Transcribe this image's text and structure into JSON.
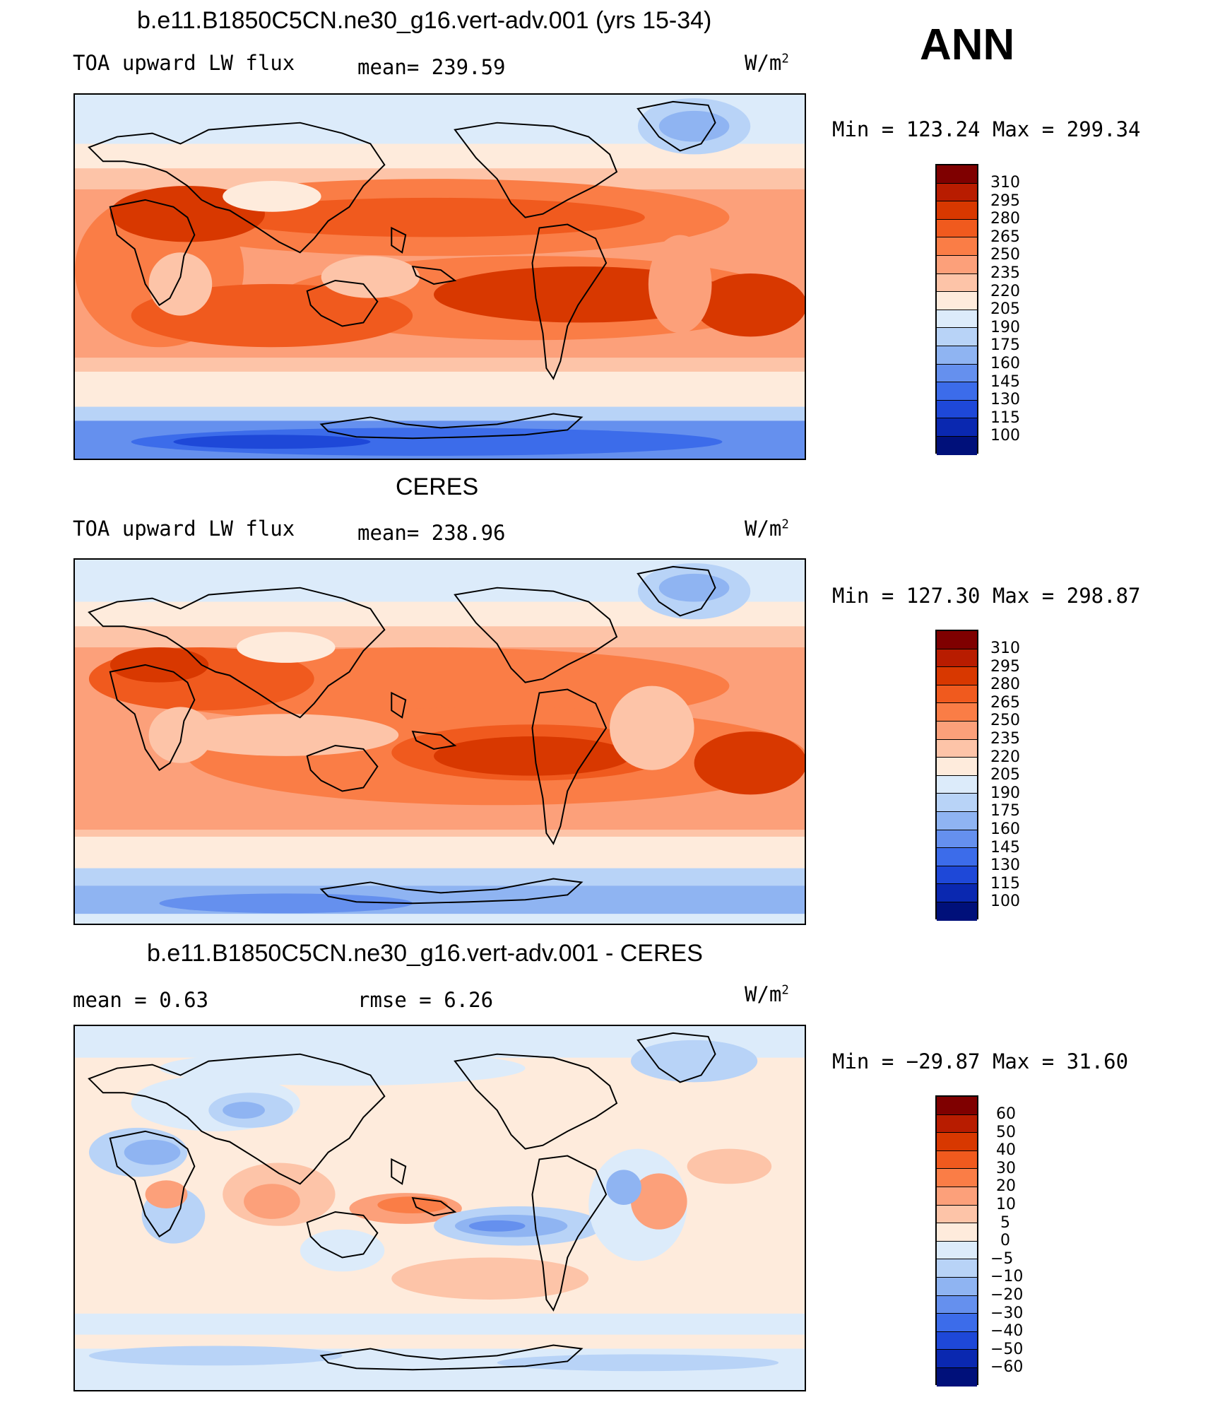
{
  "season": "ANN",
  "panels": [
    {
      "title": "b.e11.B1850C5CN.ne30_g16.vert-adv.001 (yrs 15-34)",
      "left": "TOA upward LW flux",
      "center": "mean=  239.59",
      "units": "W/m",
      "units_sup": "2",
      "minmax": "Min  =  123.24  Max  =  299.34",
      "colorbar_labels": [
        "310",
        "295",
        "280",
        "265",
        "250",
        "235",
        "220",
        "205",
        "190",
        "175",
        "160",
        "145",
        "130",
        "115",
        "100"
      ]
    },
    {
      "title": "CERES",
      "left": "TOA upward LW flux",
      "center": "mean=  238.96",
      "units": "W/m",
      "units_sup": "2",
      "minmax": "Min  =  127.30  Max  =  298.87",
      "colorbar_labels": [
        "310",
        "295",
        "280",
        "265",
        "250",
        "235",
        "220",
        "205",
        "190",
        "175",
        "160",
        "145",
        "130",
        "115",
        "100"
      ]
    },
    {
      "title": "b.e11.B1850C5CN.ne30_g16.vert-adv.001 - CERES",
      "left": "mean  =     0.63",
      "center": "rmse  =     6.26",
      "units": "W/m",
      "units_sup": "2",
      "minmax": "Min  =  −29.87  Max  =    31.60",
      "colorbar_labels": [
        "60",
        "50",
        "40",
        "30",
        "20",
        "10",
        "5",
        "0",
        "−5",
        "−10",
        "−20",
        "−30",
        "−40",
        "−50",
        "−60"
      ]
    }
  ],
  "colors": {
    "abs_scale": [
      "#7f0000",
      "#b81c00",
      "#d83800",
      "#f05a1e",
      "#fa7d46",
      "#fca07a",
      "#fdc4a8",
      "#feebdc",
      "#dcebfa",
      "#b8d3f7",
      "#8fb4f2",
      "#6590ee",
      "#3c6cea",
      "#1e48d8",
      "#0a28b0",
      "#00107a"
    ],
    "diff_scale": [
      "#7f0000",
      "#b81c00",
      "#d83800",
      "#f05a1e",
      "#fa7d46",
      "#fca07a",
      "#fdc4a8",
      "#feebdc",
      "#dcebfa",
      "#b8d3f7",
      "#8fb4f2",
      "#6590ee",
      "#3c6cea",
      "#1e48d8",
      "#0a28b0",
      "#00107a"
    ]
  }
}
